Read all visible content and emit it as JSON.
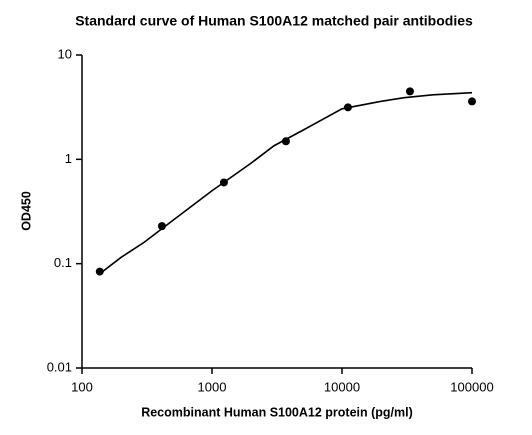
{
  "chart_data": {
    "type": "scatter",
    "title": "Standard curve of Human S100A12 matched pair antibodies",
    "xlabel": "Recombinant Human S100A12 protein (pg/ml)",
    "ylabel": "OD450",
    "xscale": "log",
    "yscale": "log",
    "xlim": [
      100,
      100000
    ],
    "xticks": [
      100,
      1000,
      10000,
      100000
    ],
    "ylim": [
      0.01,
      10
    ],
    "yticks": [
      0.01,
      0.1,
      1,
      10
    ],
    "series": [
      {
        "mode": "markers",
        "color": "#000000",
        "x": [
          137,
          412,
          1235,
          3704,
          11111,
          33333,
          100000
        ],
        "values": [
          0.084,
          0.229,
          0.6,
          1.49,
          3.15,
          4.48,
          3.59
        ]
      },
      {
        "mode": "line",
        "color": "#000000",
        "x": [
          137,
          200,
          300,
          500,
          1000,
          2000,
          3000,
          5000,
          10000,
          20000,
          30000,
          50000,
          100000
        ],
        "values": [
          0.08,
          0.115,
          0.16,
          0.26,
          0.5,
          0.92,
          1.35,
          1.9,
          3.05,
          3.6,
          3.9,
          4.15,
          4.35
        ]
      }
    ]
  }
}
